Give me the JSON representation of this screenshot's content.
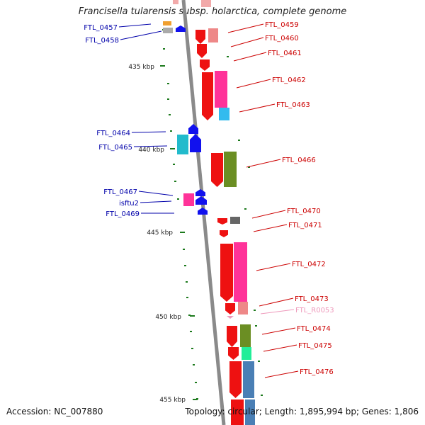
{
  "title": "Francisella tularensis subsp. holarctica, complete genome",
  "footer": {
    "accession": "Accession: NC_007880",
    "summary": "Topology: circular; Length: 1,895,994 bp; Genes: 1,806"
  },
  "colors": {
    "backbone": "#8a8a8a",
    "tick": "#1d7a1d",
    "label_forward": "#cc0000",
    "label_reverse": "#0000aa",
    "rna_label": "#ee99bb"
  },
  "scale_labels": [
    "435 kbp",
    "440 kbp",
    "445 kbp",
    "450 kbp",
    "455 kbp"
  ],
  "genes": [
    {
      "id": "FTL_0457",
      "strand": "reverse",
      "color": "#f0a030"
    },
    {
      "id": "FTL_0458",
      "strand": "reverse",
      "color": "#aaaaaa"
    },
    {
      "id": "FTL_0459",
      "strand": "forward",
      "color": "#ee8888"
    },
    {
      "id": "FTL_0460",
      "strand": "forward",
      "color": "#ee1111"
    },
    {
      "id": "FTL_0461",
      "strand": "forward",
      "color": "#ee1111"
    },
    {
      "id": "FTL_0462",
      "strand": "forward",
      "color": "#ff3399"
    },
    {
      "id": "FTL_0463",
      "strand": "forward",
      "color": "#33bbee"
    },
    {
      "id": "FTL_0464",
      "strand": "reverse",
      "color": "#1111ee"
    },
    {
      "id": "FTL_0465",
      "strand": "reverse",
      "color": "#22bbcc"
    },
    {
      "id": "FTL_0466",
      "strand": "forward",
      "color": "#6b8e23"
    },
    {
      "id": "FTL_0467",
      "strand": "reverse",
      "color": "#ff3399"
    },
    {
      "id": "isftu2",
      "strand": "reverse",
      "color": "#1111ee"
    },
    {
      "id": "FTL_0469",
      "strand": "reverse",
      "color": "#1111ee"
    },
    {
      "id": "FTL_0470",
      "strand": "forward",
      "color": "#666666"
    },
    {
      "id": "FTL_0471",
      "strand": "forward",
      "color": "#ee1111"
    },
    {
      "id": "FTL_0472",
      "strand": "forward",
      "color": "#ff3399"
    },
    {
      "id": "FTL_0473",
      "strand": "forward",
      "color": "#ee8888"
    },
    {
      "id": "FTL_R0053",
      "strand": "forward",
      "color": "#ee99bb"
    },
    {
      "id": "FTL_0474",
      "strand": "forward",
      "color": "#6b8e23"
    },
    {
      "id": "FTL_0475",
      "strand": "forward",
      "color": "#22ee99"
    },
    {
      "id": "FTL_0476",
      "strand": "forward",
      "color": "#4a7fb5"
    }
  ]
}
